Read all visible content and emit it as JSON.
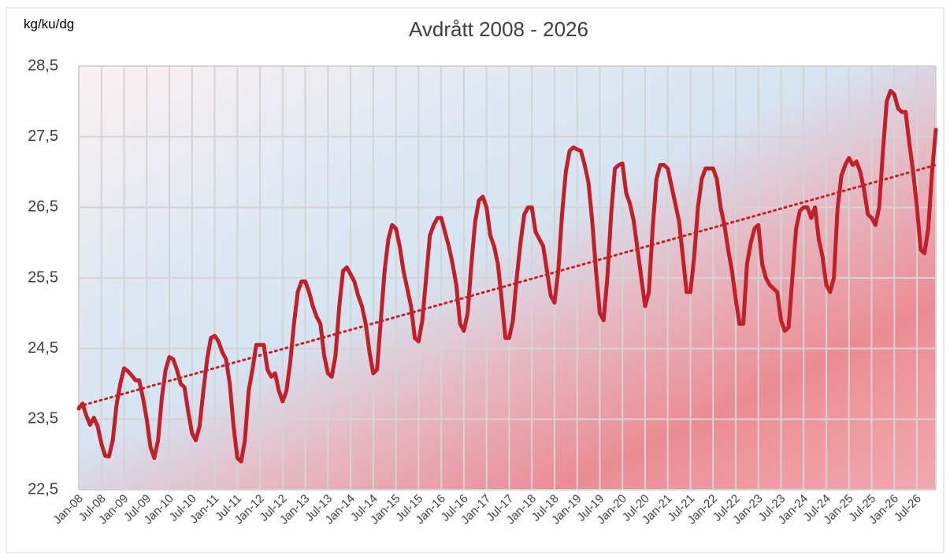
{
  "chart_data": {
    "type": "line",
    "title": "Avdrått 2008 - 2026",
    "y_label": "kg/ku/dg",
    "categories": [
      "Jan-08",
      null,
      null,
      null,
      null,
      null,
      "Jul-08",
      null,
      null,
      null,
      null,
      null,
      "Jan-09",
      null,
      null,
      null,
      null,
      null,
      "Jul-09",
      null,
      null,
      null,
      null,
      null,
      "Jan-10",
      null,
      null,
      null,
      null,
      null,
      "Jul-10",
      null,
      null,
      null,
      null,
      null,
      "Jan-11",
      null,
      null,
      null,
      null,
      null,
      "Jul-11",
      null,
      null,
      null,
      null,
      null,
      "Jan-12",
      null,
      null,
      null,
      null,
      null,
      "Jul-12",
      null,
      null,
      null,
      null,
      null,
      "Jan-13",
      null,
      null,
      null,
      null,
      null,
      "Jul-13",
      null,
      null,
      null,
      null,
      null,
      "Jan-14",
      null,
      null,
      null,
      null,
      null,
      "Jul-14",
      null,
      null,
      null,
      null,
      null,
      "Jan-15",
      null,
      null,
      null,
      null,
      null,
      "Jul-15",
      null,
      null,
      null,
      null,
      null,
      "Jan-16",
      null,
      null,
      null,
      null,
      null,
      "Jul-16",
      null,
      null,
      null,
      null,
      null,
      "Jan-17",
      null,
      null,
      null,
      null,
      null,
      "Jul-17",
      null,
      null,
      null,
      null,
      null,
      "Jan-18",
      null,
      null,
      null,
      null,
      null,
      "Jul-18",
      null,
      null,
      null,
      null,
      null,
      "Jan-19",
      null,
      null,
      null,
      null,
      null,
      "Jul-19",
      null,
      null,
      null,
      null,
      null,
      "Jan-20",
      null,
      null,
      null,
      null,
      null,
      "Jul-20",
      null,
      null,
      null,
      null,
      null,
      "Jan-21",
      null,
      null,
      null,
      null,
      null,
      "Jul-21",
      null,
      null,
      null,
      null,
      null,
      "Jan-22",
      null,
      null,
      null,
      null,
      null,
      "Jul-22",
      null,
      null,
      null,
      null,
      null,
      "Jan-23",
      null,
      null,
      null,
      null,
      null,
      "Jul-23",
      null,
      null,
      null,
      null,
      null,
      "Jan-24",
      null,
      null,
      null,
      null,
      null,
      "Jul-24",
      null,
      null,
      null,
      null,
      null,
      "Jan-25",
      null,
      null,
      null,
      null,
      null,
      "Jul-25",
      null,
      null,
      null,
      null,
      null,
      "Jan-26",
      null,
      null,
      null,
      null,
      null,
      "Jul-26",
      null,
      null,
      null,
      null,
      null
    ],
    "series": [
      {
        "color": "#c0202a",
        "values": [
          23.65,
          23.72,
          23.55,
          23.42,
          23.52,
          23.4,
          23.15,
          22.98,
          22.97,
          23.2,
          23.7,
          24.0,
          24.22,
          24.18,
          24.12,
          24.05,
          24.05,
          23.8,
          23.5,
          23.1,
          22.95,
          23.2,
          23.8,
          24.2,
          24.38,
          24.35,
          24.2,
          24.0,
          23.95,
          23.6,
          23.3,
          23.2,
          23.4,
          23.9,
          24.35,
          24.65,
          24.68,
          24.6,
          24.45,
          24.35,
          24.0,
          23.4,
          22.95,
          22.9,
          23.2,
          23.9,
          24.2,
          24.55,
          24.55,
          24.55,
          24.2,
          24.1,
          24.15,
          23.9,
          23.75,
          23.9,
          24.3,
          24.85,
          25.3,
          25.45,
          25.45,
          25.3,
          25.1,
          24.95,
          24.85,
          24.4,
          24.15,
          24.1,
          24.4,
          25.1,
          25.6,
          25.65,
          25.55,
          25.45,
          25.25,
          25.1,
          24.85,
          24.45,
          24.15,
          24.2,
          24.9,
          25.6,
          26.05,
          26.25,
          26.2,
          25.95,
          25.6,
          25.35,
          25.1,
          24.65,
          24.6,
          24.9,
          25.5,
          26.1,
          26.25,
          26.35,
          26.35,
          26.15,
          25.95,
          25.7,
          25.4,
          24.85,
          24.75,
          25.0,
          25.7,
          26.3,
          26.6,
          26.65,
          26.5,
          26.1,
          25.95,
          25.7,
          25.2,
          24.65,
          24.65,
          24.9,
          25.5,
          26.0,
          26.4,
          26.5,
          26.5,
          26.15,
          26.05,
          25.95,
          25.6,
          25.25,
          25.15,
          25.6,
          26.4,
          27.0,
          27.3,
          27.35,
          27.32,
          27.3,
          27.1,
          26.85,
          26.3,
          25.6,
          25.0,
          24.9,
          25.5,
          26.4,
          27.05,
          27.1,
          27.12,
          26.7,
          26.55,
          26.3,
          25.9,
          25.5,
          25.1,
          25.3,
          26.2,
          26.9,
          27.1,
          27.1,
          27.05,
          26.8,
          26.55,
          26.3,
          25.8,
          25.3,
          25.3,
          25.8,
          26.5,
          26.9,
          27.05,
          27.05,
          27.05,
          26.9,
          26.5,
          26.25,
          25.9,
          25.6,
          25.2,
          24.85,
          24.85,
          25.7,
          26.0,
          26.2,
          26.25,
          25.7,
          25.5,
          25.4,
          25.35,
          25.3,
          24.9,
          24.75,
          24.8,
          25.5,
          26.2,
          26.45,
          26.5,
          26.5,
          26.35,
          26.5,
          26.05,
          25.8,
          25.4,
          25.3,
          25.5,
          26.5,
          26.95,
          27.1,
          27.2,
          27.1,
          27.15,
          27.0,
          26.75,
          26.4,
          26.35,
          26.25,
          26.5,
          27.3,
          28.0,
          28.15,
          28.1,
          27.9,
          27.85,
          27.85,
          27.4,
          27.0,
          26.5,
          25.9,
          25.85,
          26.2,
          27.0,
          27.6
        ]
      }
    ],
    "trend": {
      "color": "#c0202a",
      "start": 23.68,
      "end": 27.1
    },
    "ylim": [
      22.5,
      28.5
    ],
    "yticks": [
      {
        "value": 22.5,
        "label": "22,5"
      },
      {
        "value": 23.5,
        "label": "23,5"
      },
      {
        "value": 24.5,
        "label": "24,5"
      },
      {
        "value": 25.5,
        "label": "25,5"
      },
      {
        "value": 26.5,
        "label": "26,5"
      },
      {
        "value": 27.5,
        "label": "27,5"
      },
      {
        "value": 28.5,
        "label": "28,5"
      }
    ],
    "grid": true
  }
}
